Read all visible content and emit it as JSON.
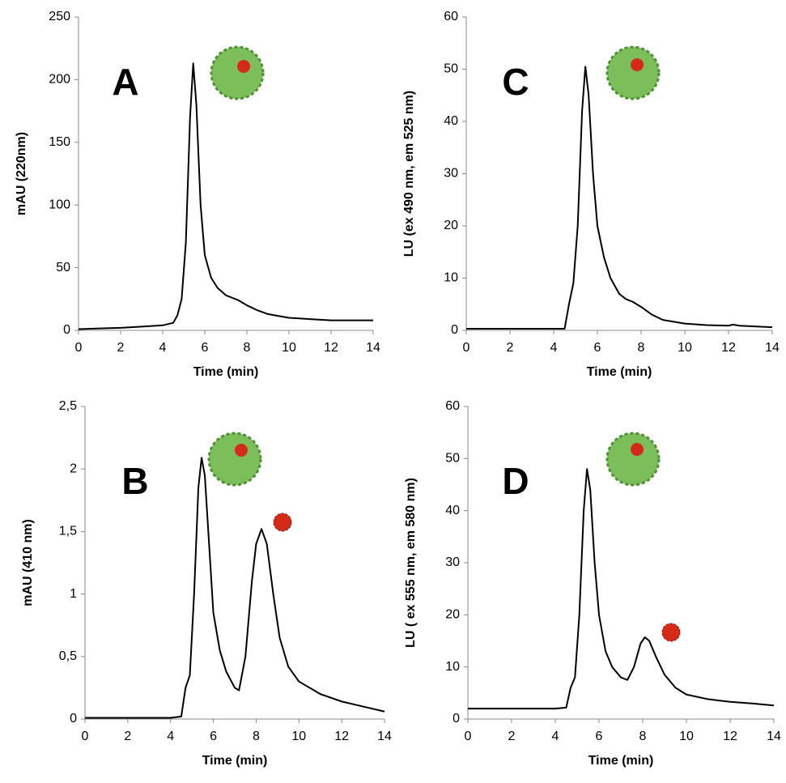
{
  "chart_data": [
    {
      "type": "line",
      "panel": "A",
      "x_label": "Time (min)",
      "y_label": "mAU (220nm)",
      "color": "#000000",
      "x": [
        0,
        1,
        2,
        3,
        4,
        4.5,
        4.7,
        4.9,
        5.1,
        5.3,
        5.45,
        5.6,
        5.8,
        6,
        6.3,
        6.6,
        7,
        7.3,
        7.6,
        8,
        8.5,
        9,
        10,
        11,
        12,
        13,
        14
      ],
      "values": [
        1,
        1.5,
        2,
        3,
        4,
        6,
        12,
        25,
        70,
        170,
        213,
        180,
        100,
        60,
        42,
        34,
        28,
        26,
        24,
        20,
        16,
        13,
        10,
        9,
        8,
        8,
        8
      ],
      "xlim": [
        0,
        14
      ],
      "xticks": [
        0,
        2,
        4,
        6,
        8,
        10,
        12,
        14
      ],
      "ylim": [
        0,
        250
      ],
      "yticks": [
        0,
        50,
        100,
        150,
        200,
        250
      ]
    },
    {
      "type": "line",
      "panel": "B",
      "x_label": "Time (min)",
      "y_label": "mAU (410 nm)",
      "color": "#000000",
      "x": [
        0,
        1,
        2,
        3,
        4,
        4.5,
        4.7,
        4.9,
        5.1,
        5.3,
        5.45,
        5.6,
        5.8,
        6,
        6.3,
        6.6,
        7,
        7.2,
        7.5,
        7.8,
        8,
        8.25,
        8.5,
        8.8,
        9.1,
        9.5,
        10,
        11,
        12,
        13,
        14
      ],
      "values": [
        0.01,
        0.01,
        0.01,
        0.01,
        0.01,
        0.02,
        0.25,
        0.35,
        1.0,
        1.85,
        2.09,
        1.95,
        1.4,
        0.85,
        0.55,
        0.38,
        0.25,
        0.23,
        0.5,
        1.1,
        1.4,
        1.52,
        1.4,
        1.0,
        0.65,
        0.42,
        0.3,
        0.2,
        0.14,
        0.1,
        0.06
      ],
      "xlim": [
        0,
        14
      ],
      "xticks": [
        0,
        2,
        4,
        6,
        8,
        10,
        12,
        14
      ],
      "ylim": [
        0,
        2.5
      ],
      "yticks": [
        0,
        {
          "value": 0.5,
          "label": "0,5"
        },
        1,
        {
          "value": 1.5,
          "label": "1,5"
        },
        2,
        {
          "value": 2.5,
          "label": "2,5"
        }
      ]
    },
    {
      "type": "line",
      "panel": "C",
      "x_label": "Time (min)",
      "y_label": "LU (ex 490 nm, em 525 nm)",
      "color": "#000000",
      "x": [
        0,
        1,
        2,
        3,
        4,
        4.5,
        4.7,
        4.9,
        5.1,
        5.3,
        5.45,
        5.6,
        5.8,
        6,
        6.3,
        6.6,
        7,
        7.3,
        7.6,
        8,
        8.5,
        9,
        10,
        11,
        12,
        12.2,
        12.5,
        13,
        14
      ],
      "values": [
        0.3,
        0.3,
        0.3,
        0.3,
        0.3,
        0.3,
        5,
        9,
        20,
        42,
        50.5,
        45,
        30,
        20,
        14,
        10,
        7,
        6,
        5.5,
        4.5,
        3,
        2,
        1.3,
        1,
        0.9,
        1.1,
        0.9,
        0.8,
        0.6
      ],
      "xlim": [
        0,
        14
      ],
      "xticks": [
        0,
        2,
        4,
        6,
        8,
        10,
        12,
        14
      ],
      "ylim": [
        0,
        60
      ],
      "yticks": [
        0,
        10,
        20,
        30,
        40,
        50,
        60
      ]
    },
    {
      "type": "line",
      "panel": "D",
      "x_label": "Time (min)",
      "y_label": "LU ( ex 555 nm, em 580 nm)",
      "color": "#000000",
      "x": [
        0,
        1,
        2,
        3,
        4,
        4.5,
        4.7,
        4.9,
        5.1,
        5.3,
        5.45,
        5.6,
        5.8,
        6,
        6.3,
        6.6,
        7,
        7.3,
        7.6,
        7.9,
        8.1,
        8.3,
        8.6,
        9,
        9.5,
        10,
        11,
        12,
        13,
        14
      ],
      "values": [
        2,
        2,
        2,
        2,
        2,
        2.2,
        6,
        8,
        20,
        40,
        48,
        44,
        30,
        20,
        13,
        10,
        8,
        7.5,
        10,
        14.5,
        15.7,
        15,
        12,
        8.5,
        6,
        4.7,
        3.8,
        3.3,
        3,
        2.6
      ],
      "xlim": [
        0,
        14
      ],
      "xticks": [
        0,
        2,
        4,
        6,
        8,
        10,
        12,
        14
      ],
      "ylim": [
        0,
        60
      ],
      "yticks": [
        0,
        10,
        20,
        30,
        40,
        50,
        60
      ]
    }
  ]
}
